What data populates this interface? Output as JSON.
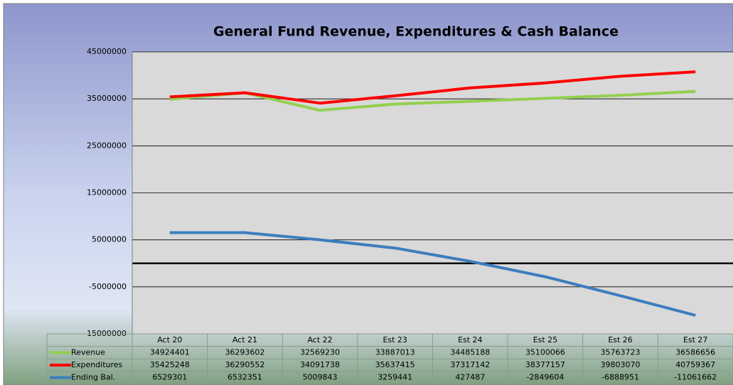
{
  "chart_data": {
    "type": "line",
    "title": "General Fund Revenue, Expenditures & Cash Balance",
    "categories": [
      "Act 20",
      "Act 21",
      "Act 22",
      "Est 23",
      "Est 24",
      "Est 25",
      "Est 26",
      "Est 27"
    ],
    "series": [
      {
        "name": "Revenue",
        "color": "#92d050",
        "values": [
          34924401,
          36293602,
          32569230,
          33887013,
          34485188,
          35100066,
          35763723,
          36586656
        ]
      },
      {
        "name": "Expenditures",
        "color": "#ff0000",
        "values": [
          35425248,
          36290552,
          34091738,
          35637415,
          37317142,
          38377157,
          39803070,
          40759367
        ]
      },
      {
        "name": "Ending Bal.",
        "color": "#3c7dbf",
        "values": [
          6529301,
          6532351,
          5009843,
          3259441,
          427487,
          -2849604,
          -6888951,
          -11061662
        ]
      }
    ],
    "ylim": [
      -15000000,
      45000000
    ],
    "yticks": [
      -15000000,
      -5000000,
      5000000,
      15000000,
      25000000,
      35000000,
      45000000
    ],
    "grid": true
  }
}
